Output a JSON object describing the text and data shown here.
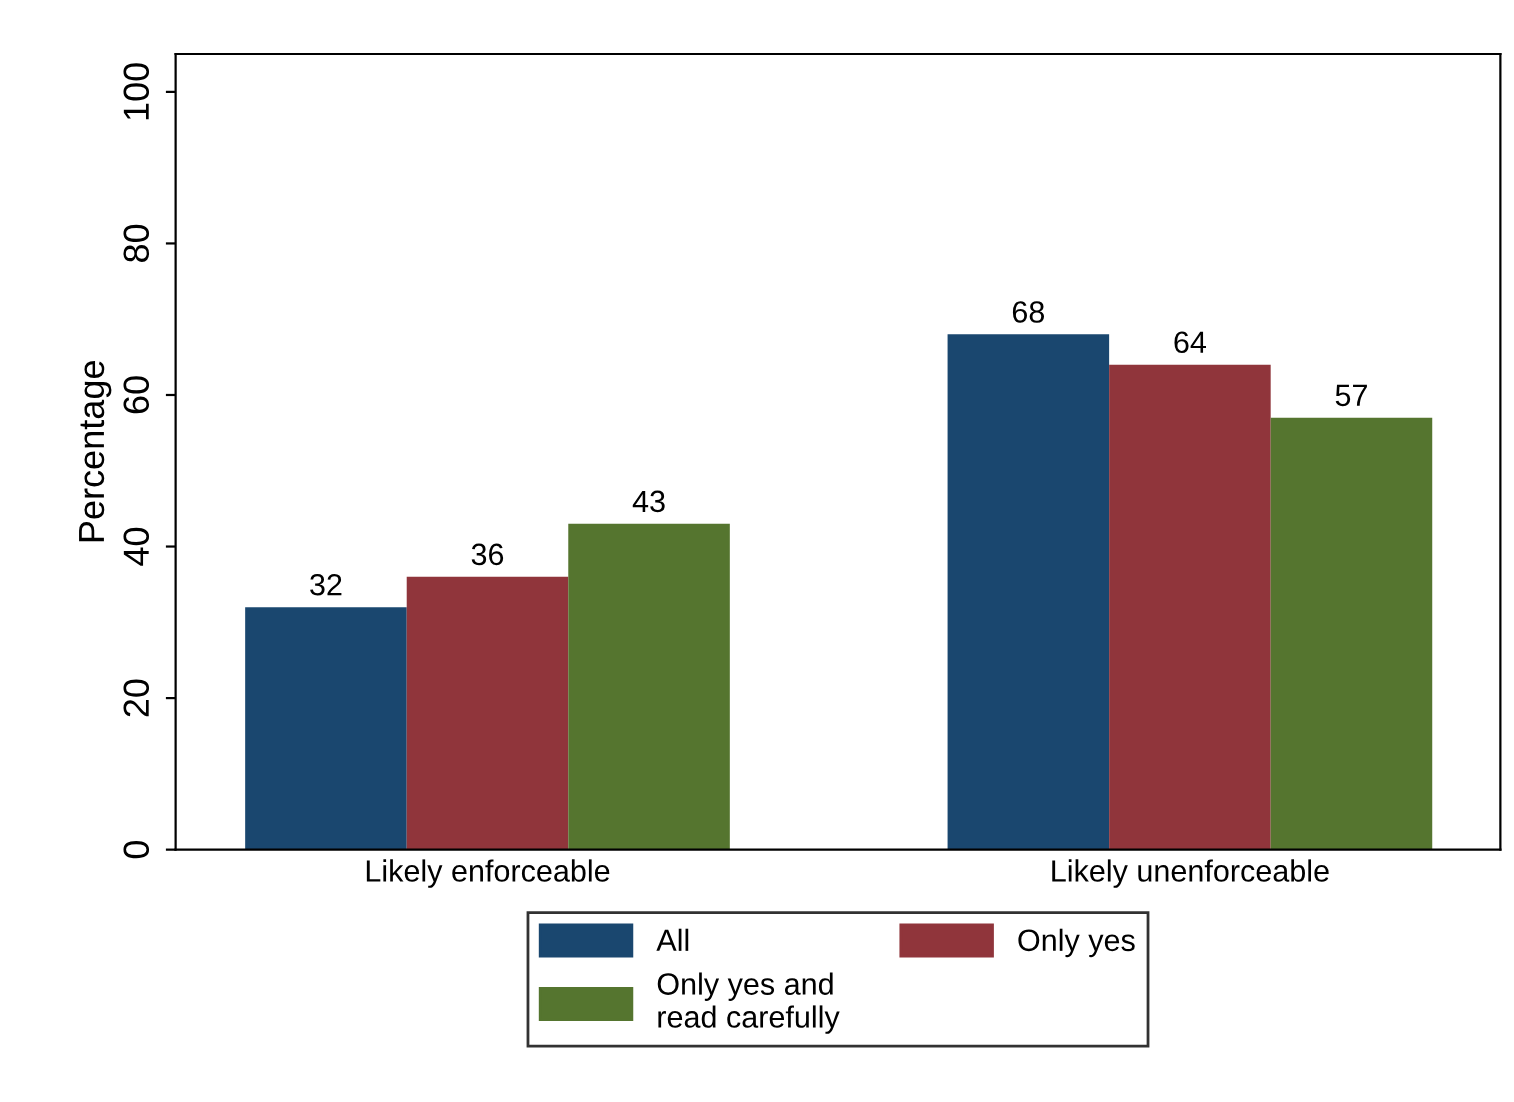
{
  "chart_data": {
    "type": "bar",
    "ylabel": "Percentage",
    "categories": [
      "Likely enforceable",
      "Likely unenforceable"
    ],
    "series": [
      {
        "name": "All",
        "color": "#1a476f",
        "values": [
          32,
          68
        ]
      },
      {
        "name": "Only yes",
        "color": "#90353b",
        "values": [
          36,
          64
        ]
      },
      {
        "name": "Only yes and\nread carefully",
        "color": "#55752f",
        "values": [
          43,
          57
        ]
      }
    ],
    "ylim": [
      0,
      105
    ],
    "yticks": [
      0,
      20,
      40,
      60,
      80,
      100
    ],
    "grid": false,
    "legend": "bottom",
    "data_labels": true
  }
}
